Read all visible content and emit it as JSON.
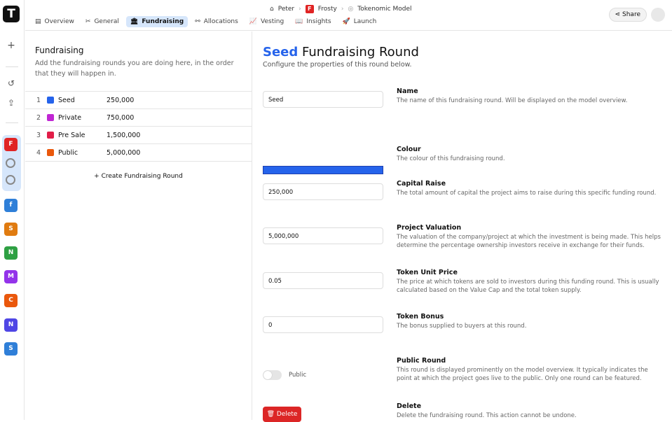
{
  "app": {
    "logo": "T"
  },
  "rail": {
    "projects": [
      {
        "letter": "F",
        "color": "#e02424"
      },
      {
        "letter": "f",
        "color": "#2f7fd8"
      },
      {
        "letter": "S",
        "color": "#e07b10"
      },
      {
        "letter": "N",
        "color": "#2ea043"
      },
      {
        "letter": "M",
        "color": "#9333ea"
      },
      {
        "letter": "C",
        "color": "#ea580c"
      },
      {
        "letter": "N",
        "color": "#4f46e5"
      },
      {
        "letter": "S",
        "color": "#2f7fd8"
      }
    ]
  },
  "breadcrumb": {
    "user": "Peter",
    "project_badge": "F",
    "project": "Frosty",
    "model": "Tokenomic Model"
  },
  "tabs": [
    {
      "label": "Overview",
      "icon": "▤"
    },
    {
      "label": "General",
      "icon": "✂"
    },
    {
      "label": "Fundraising",
      "icon": "🏛"
    },
    {
      "label": "Allocations",
      "icon": "⚯"
    },
    {
      "label": "Vesting",
      "icon": "📈"
    },
    {
      "label": "Insights",
      "icon": "📖"
    },
    {
      "label": "Launch",
      "icon": "🚀"
    }
  ],
  "share_label": "Share",
  "left": {
    "title": "Fundraising",
    "description": "Add the fundraising rounds you are doing here, in the order that they will happen in.",
    "rounds": [
      {
        "n": "1",
        "name": "Seed",
        "amount": "250,000",
        "color": "#2563eb"
      },
      {
        "n": "2",
        "name": "Private",
        "amount": "750,000",
        "color": "#c026d3"
      },
      {
        "n": "3",
        "name": "Pre Sale",
        "amount": "1,500,000",
        "color": "#e11d48"
      },
      {
        "n": "4",
        "name": "Public",
        "amount": "5,000,000",
        "color": "#ea580c"
      }
    ],
    "create_label": "Create Fundraising Round"
  },
  "right": {
    "title_accent": "Seed",
    "title_rest": " Fundraising Round",
    "subtitle": "Configure the properties of this round below.",
    "fields": [
      {
        "value": "Seed",
        "title": "Name",
        "desc": "The name of this fundraising round. Will be displayed on the model overview."
      },
      {
        "value": "#2563eb",
        "title": "Colour",
        "desc": "The colour of this fundraising round."
      },
      {
        "value": "250,000",
        "title": "Capital Raise",
        "desc": "The total amount of capital the project aims to raise during this specific funding round."
      },
      {
        "value": "5,000,000",
        "title": "Project Valuation",
        "desc": "The valuation of the company/project at which the investment is being made. This helps determine the percentage ownership investors receive in exchange for their funds."
      },
      {
        "value": "0.05",
        "title": "Token Unit Price",
        "desc": "The price at which tokens are sold to investors during this funding round. This is usually calculated based on the Value Cap and the total token supply."
      },
      {
        "value": "0",
        "title": "Token Bonus",
        "desc": "The bonus supplied to buyers at this round."
      },
      {
        "value": "Public",
        "title": "Public Round",
        "desc": "This round is displayed prominently on the model overview. It typically indicates the point at which the project goes live to the public. Only one round can be featured."
      },
      {
        "value": "Delete",
        "title": "Delete",
        "desc": "Delete the fundraising round. This action cannot be undone."
      }
    ]
  }
}
